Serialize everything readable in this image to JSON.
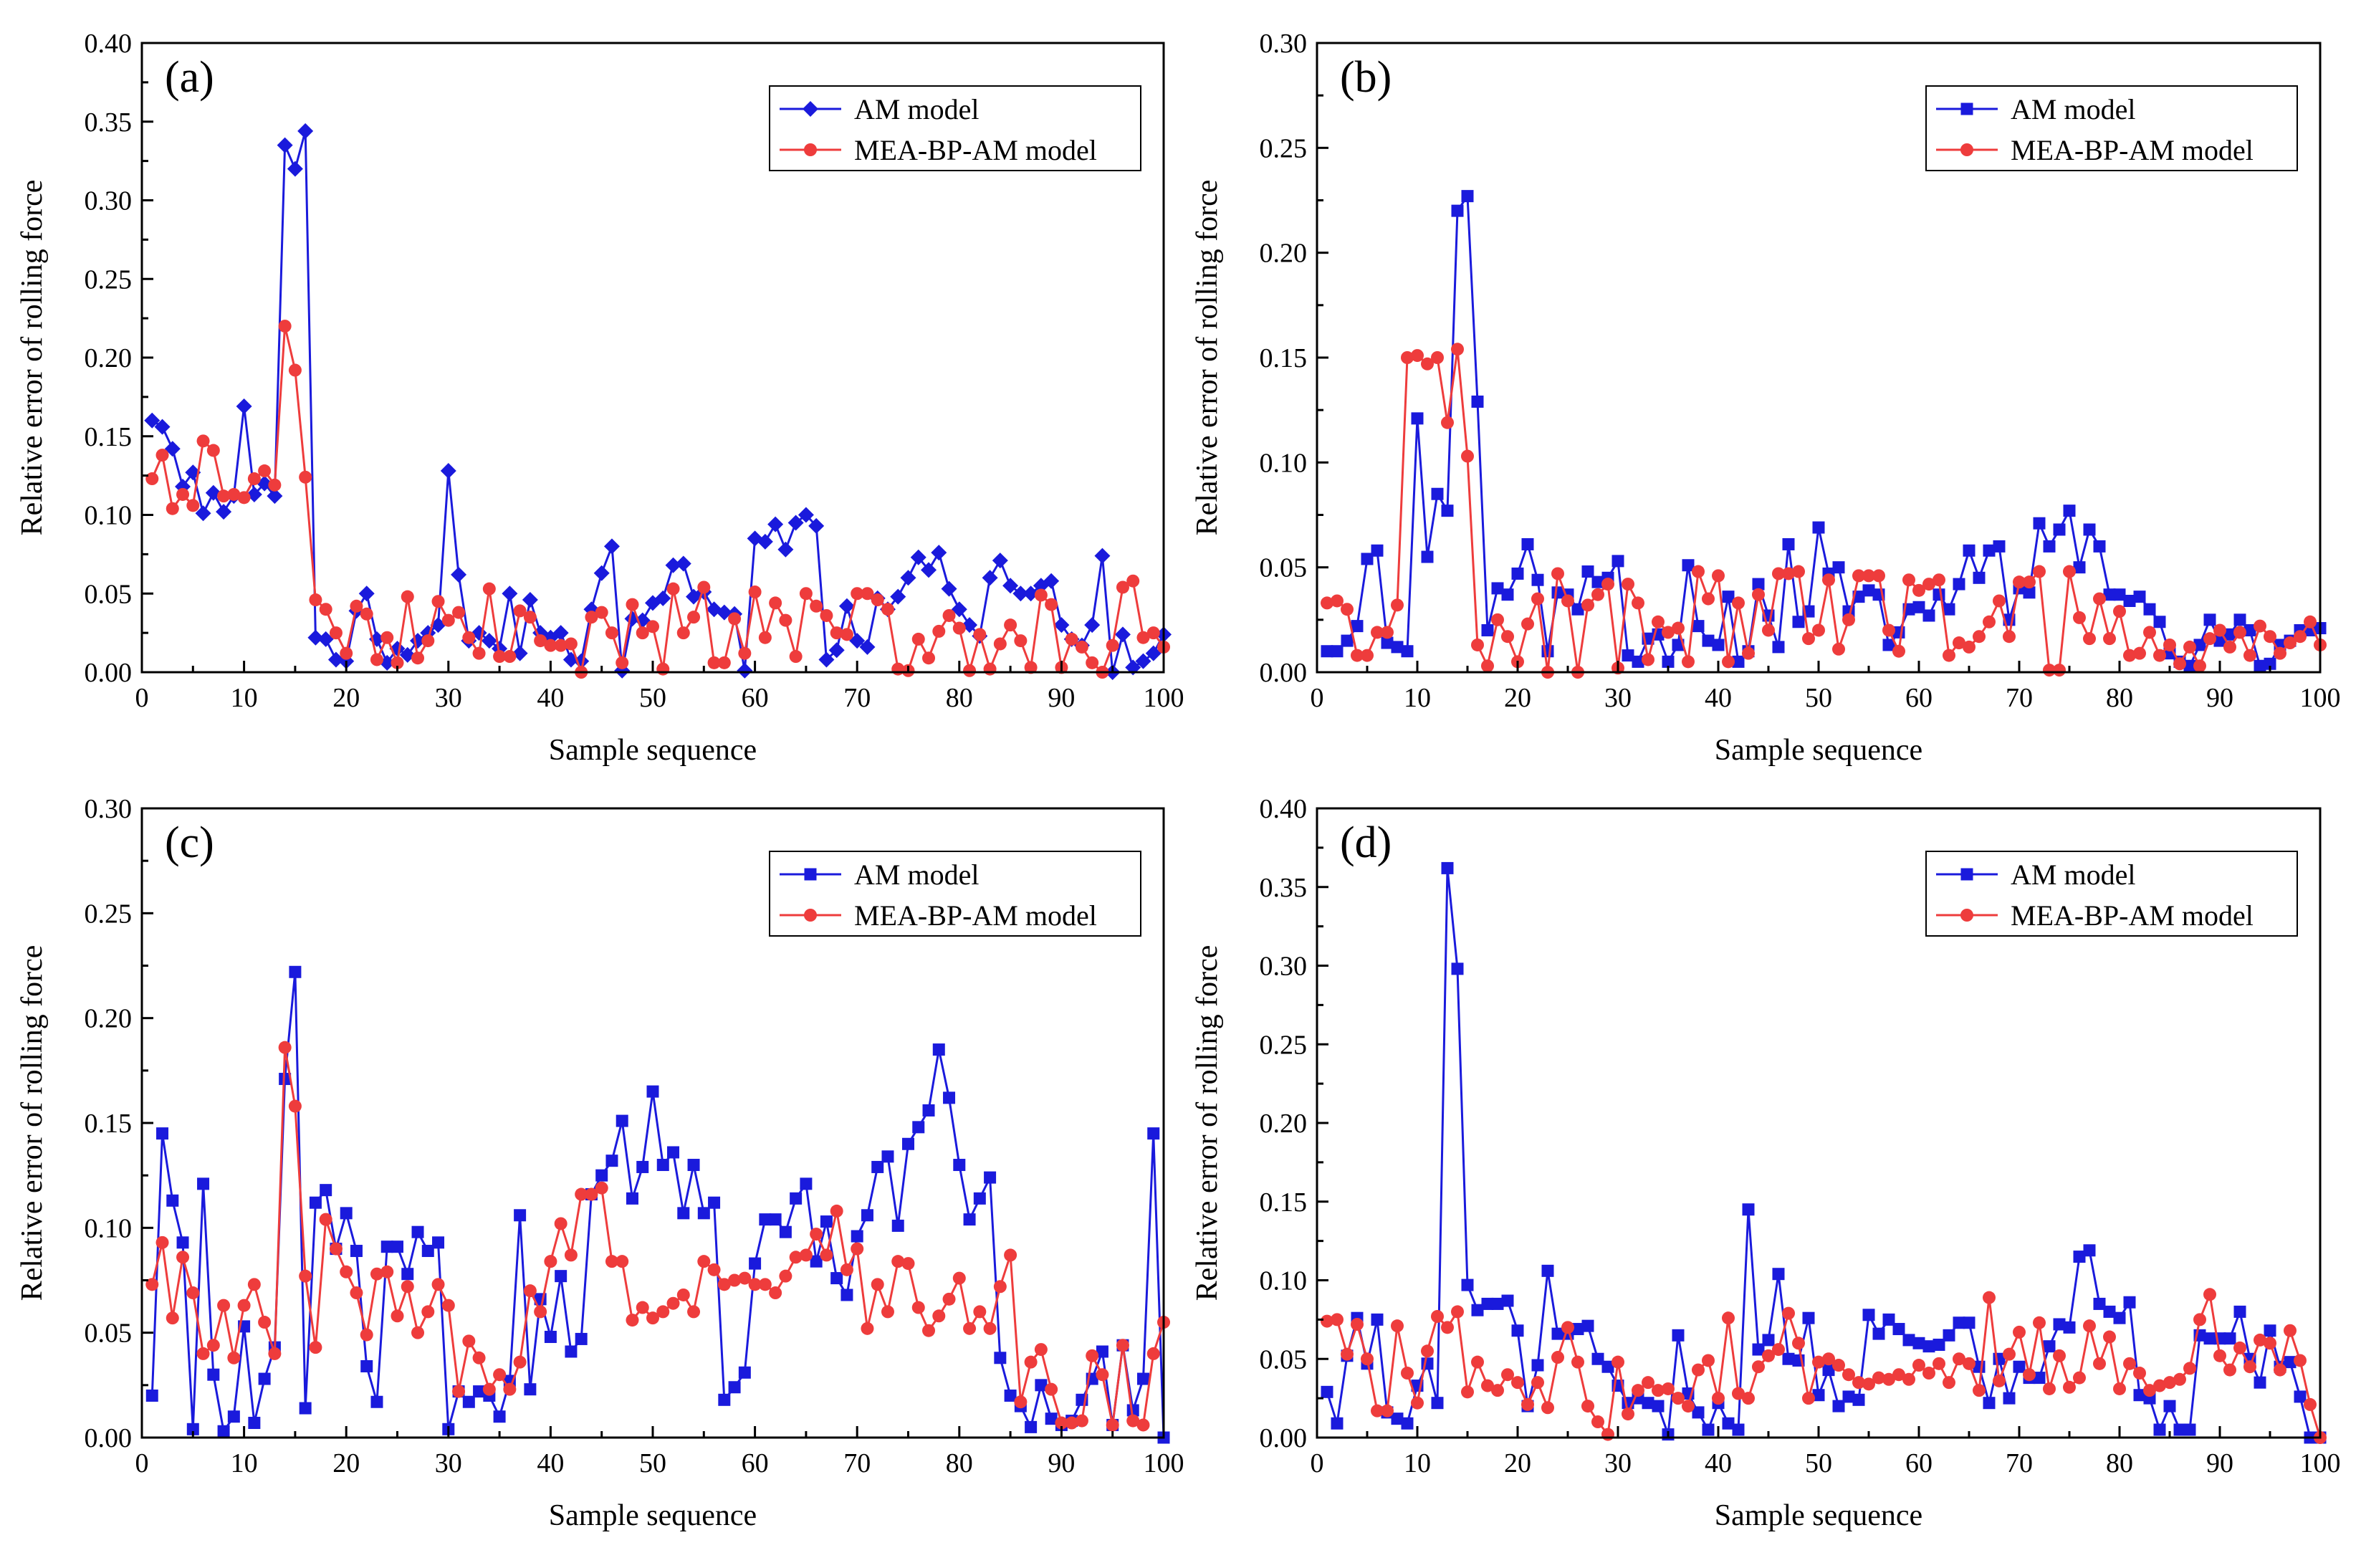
{
  "colors": {
    "am": "#1a1adc",
    "mea": "#ee3c3c",
    "axis": "#000000"
  },
  "chart_data": [
    {
      "type": "line",
      "panel_label": "(a)",
      "xlabel": "Sample sequence",
      "ylabel": "Relative error of rolling force",
      "xlim": [
        0,
        100
      ],
      "ylim": [
        0,
        0.4
      ],
      "xticks": [
        "0",
        "10",
        "20",
        "30",
        "40",
        "50",
        "60",
        "70",
        "80",
        "90",
        "100"
      ],
      "yticks": [
        "0.00",
        "0.05",
        "0.10",
        "0.15",
        "0.20",
        "0.25",
        "0.30",
        "0.35",
        "0.40"
      ],
      "legend_position": "top-right",
      "series": [
        {
          "name": "AM model",
          "marker": "diamond",
          "values": [
            0.16,
            0.156,
            0.142,
            0.118,
            0.127,
            0.101,
            0.114,
            0.102,
            0.112,
            0.169,
            0.113,
            0.12,
            0.112,
            0.335,
            0.32,
            0.344,
            0.022,
            0.021,
            0.008,
            0.007,
            0.039,
            0.05,
            0.021,
            0.006,
            0.015,
            0.011,
            0.02,
            0.025,
            0.03,
            0.128,
            0.062,
            0.02,
            0.025,
            0.02,
            0.015,
            0.05,
            0.012,
            0.046,
            0.025,
            0.022,
            0.025,
            0.008,
            0.007,
            0.04,
            0.063,
            0.08,
            0.001,
            0.034,
            0.033,
            0.044,
            0.047,
            0.068,
            0.069,
            0.048,
            0.051,
            0.04,
            0.038,
            0.037,
            0.001,
            0.085,
            0.083,
            0.094,
            0.078,
            0.095,
            0.1,
            0.093,
            0.008,
            0.014,
            0.042,
            0.02,
            0.016,
            0.047,
            0.04,
            0.048,
            0.06,
            0.073,
            0.065,
            0.076,
            0.053,
            0.04,
            0.03,
            0.023,
            0.06,
            0.071,
            0.055,
            0.05,
            0.05,
            0.055,
            0.058,
            0.03,
            0.021,
            0.017,
            0.03,
            0.074,
            0.0,
            0.024,
            0.003,
            0.007,
            0.012,
            0.024
          ]
        },
        {
          "name": "MEA-BP-AM model",
          "marker": "circle",
          "values": [
            0.123,
            0.138,
            0.104,
            0.113,
            0.106,
            0.147,
            0.141,
            0.112,
            0.113,
            0.111,
            0.123,
            0.128,
            0.119,
            0.22,
            0.192,
            0.124,
            0.046,
            0.04,
            0.025,
            0.012,
            0.042,
            0.037,
            0.008,
            0.022,
            0.006,
            0.048,
            0.009,
            0.02,
            0.045,
            0.033,
            0.038,
            0.022,
            0.012,
            0.053,
            0.01,
            0.01,
            0.039,
            0.035,
            0.02,
            0.017,
            0.017,
            0.018,
            0.0,
            0.035,
            0.038,
            0.025,
            0.006,
            0.043,
            0.025,
            0.029,
            0.002,
            0.053,
            0.025,
            0.035,
            0.054,
            0.006,
            0.006,
            0.034,
            0.012,
            0.051,
            0.022,
            0.044,
            0.033,
            0.01,
            0.05,
            0.042,
            0.036,
            0.025,
            0.024,
            0.05,
            0.05,
            0.046,
            0.04,
            0.002,
            0.001,
            0.021,
            0.009,
            0.026,
            0.036,
            0.028,
            0.001,
            0.024,
            0.002,
            0.018,
            0.03,
            0.02,
            0.003,
            0.049,
            0.043,
            0.003,
            0.021,
            0.016,
            0.006,
            0.0,
            0.017,
            0.054,
            0.058,
            0.022,
            0.025,
            0.016
          ]
        }
      ]
    },
    {
      "type": "line",
      "panel_label": "(b)",
      "xlabel": "Sample sequence",
      "ylabel": "Relative error of rolling force",
      "xlim": [
        0,
        100
      ],
      "ylim": [
        0,
        0.3
      ],
      "xticks": [
        "0",
        "10",
        "20",
        "30",
        "40",
        "50",
        "60",
        "70",
        "80",
        "90",
        "100"
      ],
      "yticks": [
        "0.00",
        "0.05",
        "0.10",
        "0.15",
        "0.20",
        "0.25",
        "0.30"
      ],
      "legend_position": "top-right",
      "series": [
        {
          "name": "AM model",
          "marker": "square",
          "values": [
            0.01,
            0.01,
            0.015,
            0.022,
            0.054,
            0.058,
            0.014,
            0.012,
            0.01,
            0.121,
            0.055,
            0.085,
            0.077,
            0.22,
            0.227,
            0.129,
            0.02,
            0.04,
            0.037,
            0.047,
            0.061,
            0.044,
            0.01,
            0.038,
            0.037,
            0.03,
            0.048,
            0.043,
            0.045,
            0.053,
            0.008,
            0.005,
            0.016,
            0.018,
            0.005,
            0.013,
            0.051,
            0.022,
            0.015,
            0.013,
            0.036,
            0.005,
            0.01,
            0.042,
            0.027,
            0.012,
            0.061,
            0.024,
            0.029,
            0.069,
            0.047,
            0.05,
            0.029,
            0.036,
            0.039,
            0.037,
            0.013,
            0.019,
            0.03,
            0.031,
            0.027,
            0.037,
            0.03,
            0.042,
            0.058,
            0.045,
            0.058,
            0.06,
            0.025,
            0.04,
            0.038,
            0.071,
            0.06,
            0.068,
            0.077,
            0.05,
            0.068,
            0.06,
            0.037,
            0.037,
            0.034,
            0.036,
            0.03,
            0.024,
            0.009,
            0.005,
            0.003,
            0.013,
            0.025,
            0.015,
            0.018,
            0.025,
            0.02,
            0.003,
            0.004,
            0.013,
            0.015,
            0.02,
            0.02,
            0.021
          ]
        },
        {
          "name": "MEA-BP-AM model",
          "marker": "circle",
          "values": [
            0.033,
            0.034,
            0.03,
            0.008,
            0.008,
            0.019,
            0.019,
            0.032,
            0.15,
            0.151,
            0.147,
            0.15,
            0.119,
            0.154,
            0.103,
            0.013,
            0.003,
            0.025,
            0.017,
            0.005,
            0.023,
            0.035,
            0.0,
            0.047,
            0.034,
            0.0,
            0.032,
            0.037,
            0.042,
            0.002,
            0.042,
            0.033,
            0.006,
            0.024,
            0.019,
            0.021,
            0.005,
            0.048,
            0.035,
            0.046,
            0.005,
            0.033,
            0.009,
            0.037,
            0.02,
            0.047,
            0.047,
            0.048,
            0.016,
            0.02,
            0.044,
            0.011,
            0.025,
            0.046,
            0.046,
            0.046,
            0.02,
            0.01,
            0.044,
            0.039,
            0.042,
            0.044,
            0.008,
            0.014,
            0.012,
            0.017,
            0.024,
            0.034,
            0.017,
            0.043,
            0.043,
            0.048,
            0.001,
            0.001,
            0.048,
            0.026,
            0.016,
            0.035,
            0.016,
            0.029,
            0.008,
            0.009,
            0.019,
            0.008,
            0.013,
            0.004,
            0.012,
            0.003,
            0.016,
            0.02,
            0.012,
            0.019,
            0.008,
            0.022,
            0.017,
            0.009,
            0.014,
            0.017,
            0.024,
            0.013
          ]
        }
      ]
    },
    {
      "type": "line",
      "panel_label": "(c)",
      "xlabel": "Sample sequence",
      "ylabel": "Relative error of rolling force",
      "xlim": [
        0,
        100
      ],
      "ylim": [
        0,
        0.3
      ],
      "xticks": [
        "0",
        "10",
        "20",
        "30",
        "40",
        "50",
        "60",
        "70",
        "80",
        "90",
        "100"
      ],
      "yticks": [
        "0.00",
        "0.05",
        "0.10",
        "0.15",
        "0.20",
        "0.25",
        "0.30"
      ],
      "legend_position": "top-right",
      "series": [
        {
          "name": "AM model",
          "marker": "square",
          "values": [
            0.02,
            0.145,
            0.113,
            0.093,
            0.004,
            0.121,
            0.03,
            0.003,
            0.01,
            0.053,
            0.007,
            0.028,
            0.043,
            0.171,
            0.222,
            0.014,
            0.112,
            0.118,
            0.09,
            0.107,
            0.089,
            0.034,
            0.017,
            0.091,
            0.091,
            0.078,
            0.098,
            0.089,
            0.093,
            0.004,
            0.022,
            0.017,
            0.022,
            0.02,
            0.01,
            0.027,
            0.106,
            0.023,
            0.066,
            0.048,
            0.077,
            0.041,
            0.047,
            0.116,
            0.125,
            0.132,
            0.151,
            0.114,
            0.129,
            0.165,
            0.13,
            0.136,
            0.107,
            0.13,
            0.107,
            0.112,
            0.018,
            0.024,
            0.031,
            0.083,
            0.104,
            0.104,
            0.098,
            0.114,
            0.121,
            0.084,
            0.103,
            0.076,
            0.068,
            0.096,
            0.106,
            0.129,
            0.134,
            0.101,
            0.14,
            0.148,
            0.156,
            0.185,
            0.162,
            0.13,
            0.104,
            0.114,
            0.124,
            0.038,
            0.02,
            0.015,
            0.005,
            0.025,
            0.009,
            0.006,
            0.008,
            0.018,
            0.028,
            0.041,
            0.006,
            0.044,
            0.013,
            0.028,
            0.145,
            0.0
          ]
        },
        {
          "name": "MEA-BP-AM model",
          "marker": "circle",
          "values": [
            0.073,
            0.093,
            0.057,
            0.086,
            0.069,
            0.04,
            0.044,
            0.063,
            0.038,
            0.063,
            0.073,
            0.055,
            0.04,
            0.186,
            0.158,
            0.077,
            0.043,
            0.104,
            0.09,
            0.079,
            0.069,
            0.049,
            0.078,
            0.079,
            0.058,
            0.072,
            0.05,
            0.06,
            0.073,
            0.063,
            0.022,
            0.046,
            0.038,
            0.023,
            0.03,
            0.023,
            0.036,
            0.07,
            0.06,
            0.084,
            0.102,
            0.087,
            0.116,
            0.116,
            0.119,
            0.084,
            0.084,
            0.056,
            0.062,
            0.057,
            0.06,
            0.064,
            0.068,
            0.06,
            0.084,
            0.08,
            0.073,
            0.075,
            0.076,
            0.073,
            0.073,
            0.069,
            0.077,
            0.086,
            0.087,
            0.097,
            0.087,
            0.108,
            0.08,
            0.09,
            0.052,
            0.073,
            0.06,
            0.084,
            0.083,
            0.062,
            0.051,
            0.058,
            0.066,
            0.076,
            0.052,
            0.06,
            0.052,
            0.072,
            0.087,
            0.017,
            0.036,
            0.042,
            0.023,
            0.007,
            0.007,
            0.008,
            0.039,
            0.03,
            0.006,
            0.044,
            0.008,
            0.006,
            0.04,
            0.055
          ]
        }
      ]
    },
    {
      "type": "line",
      "panel_label": "(d)",
      "xlabel": "Sample sequence",
      "ylabel": "Relative error of rolling force",
      "xlim": [
        0,
        100
      ],
      "ylim": [
        0,
        0.4
      ],
      "xticks": [
        "0",
        "10",
        "20",
        "30",
        "40",
        "50",
        "60",
        "70",
        "80",
        "90",
        "100"
      ],
      "yticks": [
        "0.00",
        "0.05",
        "0.10",
        "0.15",
        "0.20",
        "0.25",
        "0.30",
        "0.35",
        "0.40"
      ],
      "legend_position": "top-right",
      "series": [
        {
          "name": "AM model",
          "marker": "square",
          "values": [
            0.029,
            0.009,
            0.052,
            0.076,
            0.047,
            0.075,
            0.016,
            0.012,
            0.009,
            0.033,
            0.047,
            0.022,
            0.362,
            0.298,
            0.097,
            0.081,
            0.085,
            0.085,
            0.087,
            0.068,
            0.02,
            0.046,
            0.106,
            0.066,
            0.066,
            0.069,
            0.071,
            0.05,
            0.045,
            0.033,
            0.022,
            0.025,
            0.022,
            0.02,
            0.002,
            0.065,
            0.028,
            0.016,
            0.005,
            0.022,
            0.009,
            0.005,
            0.145,
            0.056,
            0.062,
            0.104,
            0.05,
            0.049,
            0.076,
            0.027,
            0.043,
            0.02,
            0.026,
            0.024,
            0.078,
            0.066,
            0.075,
            0.069,
            0.062,
            0.06,
            0.058,
            0.059,
            0.065,
            0.073,
            0.073,
            0.045,
            0.022,
            0.05,
            0.025,
            0.045,
            0.038,
            0.038,
            0.058,
            0.072,
            0.07,
            0.115,
            0.119,
            0.085,
            0.08,
            0.076,
            0.086,
            0.027,
            0.025,
            0.005,
            0.02,
            0.005,
            0.005,
            0.065,
            0.063,
            0.063,
            0.063,
            0.08,
            0.05,
            0.035,
            0.068,
            0.045,
            0.048,
            0.026,
            0.0,
            0.0
          ]
        },
        {
          "name": "MEA-BP-AM model",
          "marker": "circle",
          "values": [
            0.074,
            0.075,
            0.053,
            0.072,
            0.05,
            0.017,
            0.017,
            0.071,
            0.041,
            0.022,
            0.055,
            0.077,
            0.07,
            0.08,
            0.029,
            0.048,
            0.033,
            0.03,
            0.04,
            0.035,
            0.021,
            0.035,
            0.019,
            0.051,
            0.07,
            0.048,
            0.02,
            0.01,
            0.002,
            0.048,
            0.015,
            0.03,
            0.035,
            0.03,
            0.031,
            0.025,
            0.02,
            0.043,
            0.049,
            0.025,
            0.076,
            0.028,
            0.025,
            0.045,
            0.052,
            0.056,
            0.079,
            0.06,
            0.025,
            0.048,
            0.05,
            0.046,
            0.04,
            0.035,
            0.034,
            0.038,
            0.037,
            0.04,
            0.037,
            0.046,
            0.041,
            0.047,
            0.035,
            0.05,
            0.047,
            0.03,
            0.089,
            0.036,
            0.053,
            0.067,
            0.04,
            0.073,
            0.031,
            0.052,
            0.032,
            0.038,
            0.071,
            0.047,
            0.064,
            0.031,
            0.047,
            0.041,
            0.03,
            0.033,
            0.035,
            0.037,
            0.044,
            0.075,
            0.091,
            0.052,
            0.043,
            0.057,
            0.045,
            0.062,
            0.06,
            0.043,
            0.068,
            0.049,
            0.021,
            0.0
          ]
        }
      ]
    }
  ]
}
